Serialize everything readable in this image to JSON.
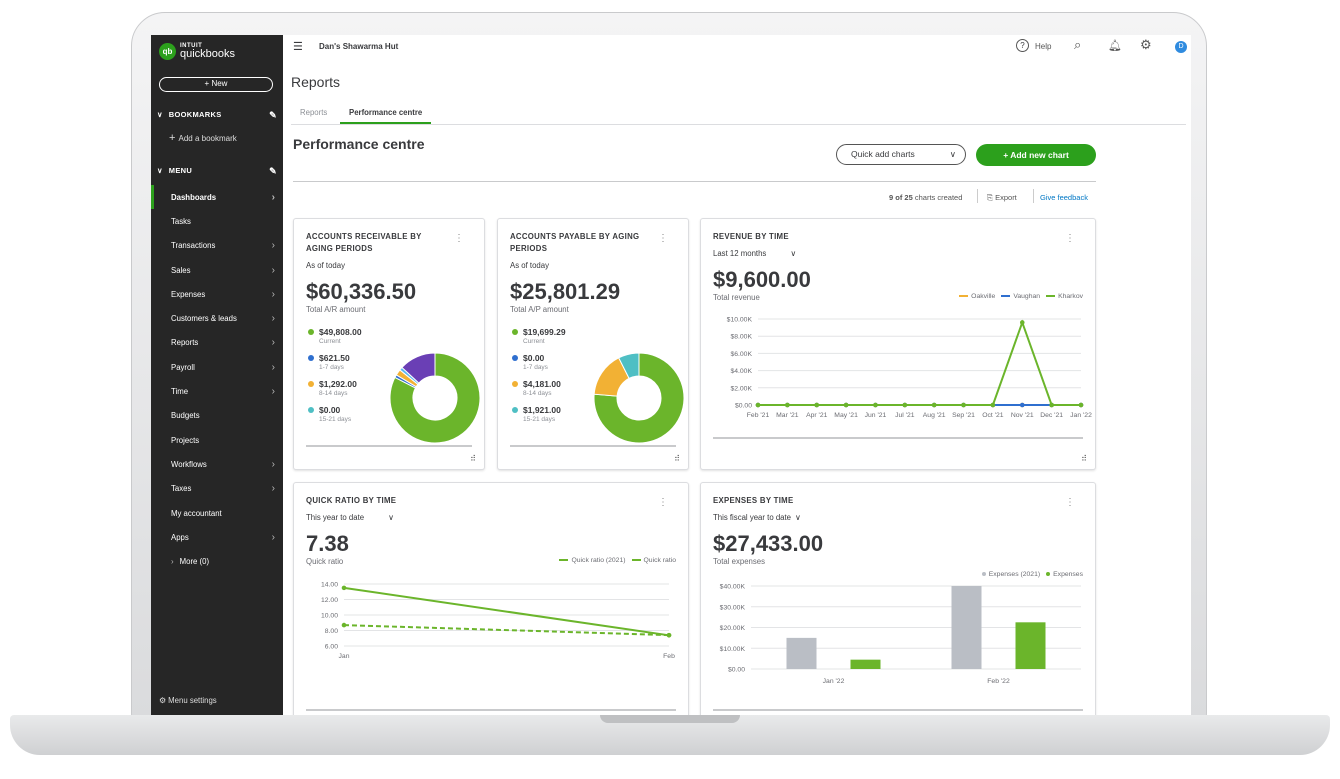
{
  "app": {
    "logo_brand": "INTUIT",
    "logo_product": "quickbooks",
    "company": "Dan's Shawarma Hut",
    "help": "Help",
    "avatar": "D"
  },
  "sidebar": {
    "new_label": "New",
    "bookmarks_label": "BOOKMARKS",
    "add_bookmark": "Add a bookmark",
    "menu_label": "MENU",
    "items": [
      {
        "label": "Dashboards",
        "chevron": true,
        "active": true
      },
      {
        "label": "Tasks"
      },
      {
        "label": "Transactions",
        "chevron": true
      },
      {
        "label": "Sales",
        "chevron": true
      },
      {
        "label": "Expenses",
        "chevron": true
      },
      {
        "label": "Customers & leads",
        "chevron": true
      },
      {
        "label": "Reports",
        "chevron": true
      },
      {
        "label": "Payroll",
        "chevron": true
      },
      {
        "label": "Time",
        "chevron": true
      },
      {
        "label": "Budgets"
      },
      {
        "label": "Projects"
      },
      {
        "label": "Workflows",
        "chevron": true
      },
      {
        "label": "Taxes",
        "chevron": true
      },
      {
        "label": "My accountant"
      },
      {
        "label": "Apps",
        "chevron": true
      },
      {
        "label": "More (0)"
      }
    ],
    "menu_settings": "Menu settings"
  },
  "page": {
    "title": "Reports",
    "tabs": [
      "Reports",
      "Performance centre"
    ],
    "active_tab": 1,
    "heading": "Performance centre",
    "quick_add": "Quick add charts",
    "add_chart": "+ Add new chart",
    "count_strong": "9 of 25",
    "count_text": "charts created",
    "export": "Export",
    "feedback": "Give feedback"
  },
  "colors": {
    "green": "#6bb52b",
    "blue": "#2f6fcf",
    "orange": "#f2b134",
    "teal": "#4fbfc4",
    "purple": "#6a3fb5",
    "lightblue": "#5bb7f0",
    "gray": "#babec5",
    "accent": "#2ca01c"
  },
  "chart_data": [
    {
      "type": "pie",
      "title": "ACCOUNTS RECEIVABLE BY AGING PERIODS",
      "subtitle": "As of today",
      "total": "$60,336.50",
      "total_label": "Total A/R amount",
      "legend": [
        {
          "value": "$49,808.00",
          "label": "Current",
          "color": "#6bb52b"
        },
        {
          "value": "$621.50",
          "label": "1-7 days",
          "color": "#2f6fcf"
        },
        {
          "value": "$1,292.00",
          "label": "8-14 days",
          "color": "#f2b134"
        },
        {
          "value": "$0.00",
          "label": "15-21 days",
          "color": "#4fbfc4"
        }
      ],
      "slices": [
        {
          "value": 49808,
          "color": "#6bb52b"
        },
        {
          "value": 621.5,
          "color": "#2f6fcf"
        },
        {
          "value": 1292,
          "color": "#f2b134"
        },
        {
          "value": 0,
          "color": "#4fbfc4"
        },
        {
          "value": 700,
          "color": "#5bb7f0"
        },
        {
          "value": 7915,
          "color": "#6a3fb5"
        }
      ]
    },
    {
      "type": "pie",
      "title": "ACCOUNTS PAYABLE BY AGING PERIODS",
      "subtitle": "As of today",
      "total": "$25,801.29",
      "total_label": "Total A/P amount",
      "legend": [
        {
          "value": "$19,699.29",
          "label": "Current",
          "color": "#6bb52b"
        },
        {
          "value": "$0.00",
          "label": "1-7 days",
          "color": "#2f6fcf"
        },
        {
          "value": "$4,181.00",
          "label": "8-14 days",
          "color": "#f2b134"
        },
        {
          "value": "$1,921.00",
          "label": "15-21 days",
          "color": "#4fbfc4"
        }
      ],
      "slices": [
        {
          "value": 19699.29,
          "color": "#6bb52b"
        },
        {
          "value": 0,
          "color": "#2f6fcf"
        },
        {
          "value": 4181,
          "color": "#f2b134"
        },
        {
          "value": 1921,
          "color": "#4fbfc4"
        }
      ]
    },
    {
      "type": "line",
      "title": "REVENUE BY TIME",
      "period": "Last 12 months",
      "total": "$9,600.00",
      "total_label": "Total revenue",
      "categories": [
        "Feb '21",
        "Mar '21",
        "Apr '21",
        "May '21",
        "Jun '21",
        "Jul '21",
        "Aug '21",
        "Sep '21",
        "Oct '21",
        "Nov '21",
        "Dec '21",
        "Jan '22"
      ],
      "yticks": [
        "$0.00",
        "$2.00K",
        "$4.00K",
        "$6.00K",
        "$8.00K",
        "$10.00K"
      ],
      "ylim": [
        0,
        10000
      ],
      "legend": "top-right",
      "grid": true,
      "series": [
        {
          "name": "Oakville",
          "color": "#f2b134",
          "values": [
            0,
            0,
            0,
            0,
            0,
            0,
            0,
            0,
            0,
            0,
            0,
            0
          ]
        },
        {
          "name": "Vaughan",
          "color": "#2f6fcf",
          "values": [
            0,
            0,
            0,
            0,
            0,
            0,
            0,
            0,
            0,
            0,
            0,
            0
          ]
        },
        {
          "name": "Kharkov",
          "color": "#6bb52b",
          "values": [
            0,
            0,
            0,
            0,
            0,
            0,
            0,
            0,
            0,
            9600,
            0,
            0
          ]
        }
      ]
    },
    {
      "type": "line",
      "title": "QUICK RATIO BY TIME",
      "period": "This year to date",
      "total": "7.38",
      "total_label": "Quick ratio",
      "categories": [
        "Jan",
        "Feb"
      ],
      "yticks": [
        "6.00",
        "8.00",
        "10.00",
        "12.00",
        "14.00"
      ],
      "ylim": [
        6,
        14
      ],
      "legend": "top-right",
      "grid": true,
      "series": [
        {
          "name": "Quick ratio (2021)",
          "color": "#6bb52b",
          "dashed": true,
          "values": [
            8.7,
            7.4
          ]
        },
        {
          "name": "Quick ratio",
          "color": "#6bb52b",
          "values": [
            13.5,
            7.38
          ]
        }
      ]
    },
    {
      "type": "bar",
      "title": "EXPENSES BY TIME",
      "period": "This fiscal year to date",
      "total": "$27,433.00",
      "total_label": "Total expenses",
      "categories": [
        "Jan '22",
        "Feb '22"
      ],
      "yticks": [
        "$0.00",
        "$10.00K",
        "$20.00K",
        "$30.00K",
        "$40.00K"
      ],
      "ylim": [
        0,
        40000
      ],
      "legend": "top-right",
      "grid": true,
      "series": [
        {
          "name": "Expenses (2021)",
          "color": "#babec5",
          "values": [
            15000,
            40000
          ]
        },
        {
          "name": "Expenses",
          "color": "#6bb52b",
          "values": [
            4500,
            22500
          ]
        }
      ]
    }
  ]
}
